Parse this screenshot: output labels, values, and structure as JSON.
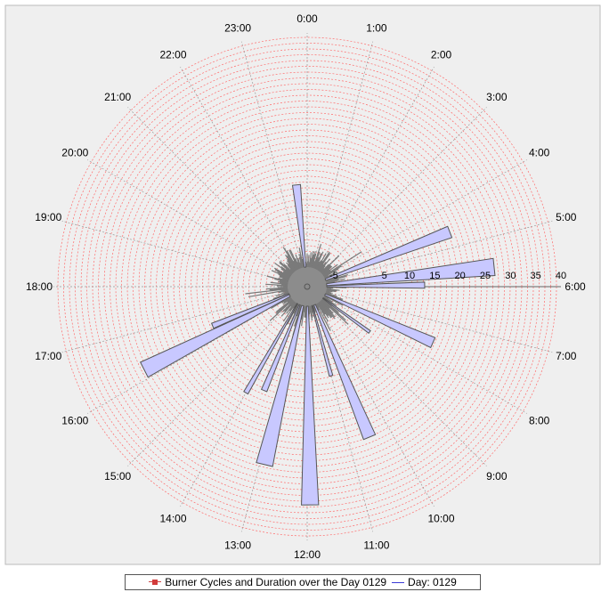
{
  "chart_data": {
    "type": "polar-bar",
    "title": "",
    "hour_labels": [
      "0:00",
      "1:00",
      "2:00",
      "3:00",
      "4:00",
      "5:00",
      "6:00",
      "7:00",
      "8:00",
      "9:00",
      "10:00",
      "11:00",
      "12:00",
      "13:00",
      "14:00",
      "15:00",
      "16:00",
      "17:00",
      "18:00",
      "19:00",
      "20:00",
      "21:00",
      "22:00",
      "23:00"
    ],
    "radial_ticks": [
      "-5",
      "5",
      "10",
      "15",
      "20",
      "25",
      "30",
      "35",
      "40"
    ],
    "radial_range": [
      -10,
      40
    ],
    "start_angle_hour": 0,
    "series": [
      {
        "name": "Burner Cycles and Duration over the Day 0129",
        "color": "#cc4444",
        "fill": "#c8c8ff",
        "bars": [
          {
            "hour": 23.6,
            "width_hours": 0.3,
            "value": 10
          },
          {
            "hour": 4.6,
            "width_hours": 0.3,
            "value": 20
          },
          {
            "hour": 5.6,
            "width_hours": 0.35,
            "value": 27
          },
          {
            "hour": 5.95,
            "width_hours": 0.2,
            "value": 13
          },
          {
            "hour": 7.6,
            "width_hours": 0.3,
            "value": 17
          },
          {
            "hour": 8.4,
            "width_hours": 0.15,
            "value": 5
          },
          {
            "hour": 10.5,
            "width_hours": 0.3,
            "value": 22
          },
          {
            "hour": 11.0,
            "width_hours": 0.15,
            "value": 8
          },
          {
            "hour": 11.95,
            "width_hours": 0.3,
            "value": 33
          },
          {
            "hour": 12.9,
            "width_hours": 0.35,
            "value": 26
          },
          {
            "hour": 13.5,
            "width_hours": 0.2,
            "value": 12
          },
          {
            "hour": 14.0,
            "width_hours": 0.15,
            "value": 14
          },
          {
            "hour": 16.2,
            "width_hours": 0.35,
            "value": 26
          },
          {
            "hour": 16.5,
            "width_hours": 0.2,
            "value": 10
          }
        ]
      },
      {
        "name": "Day: 0129",
        "color": "#3a3ad6"
      }
    ],
    "grid": true,
    "legend_position": "bottom"
  },
  "legend": {
    "series1_label": "Burner Cycles and Duration over the Day 0129",
    "series2_label": "Day: 0129"
  }
}
